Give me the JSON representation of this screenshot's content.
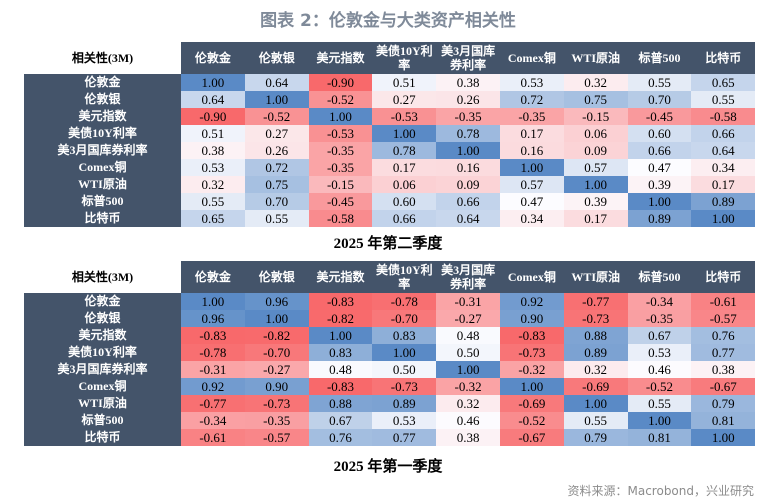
{
  "title": "图表 2：伦敦金与大类资产相关性",
  "source": "资料来源：Macrobond，兴业研究",
  "colors": {
    "header_bg": "#44546a",
    "positive": "#5a8ac6",
    "neutral": "#fcfcff",
    "negative": "#f8696b"
  },
  "chart_data": [
    {
      "type": "heatmap",
      "corner_label": "相关性(3M)",
      "title": "2025 年第二季度",
      "columns": [
        "伦敦金",
        "伦敦银",
        "美元指数",
        "美债10Y利率",
        "美3月国库券利率",
        "Comex铜",
        "WTI原油",
        "标普500",
        "比特币"
      ],
      "rows": [
        "伦敦金",
        "伦敦银",
        "美元指数",
        "美债10Y利率",
        "美3月国库券利率",
        "Comex铜",
        "WTI原油",
        "标普500",
        "比特币"
      ],
      "values": [
        [
          "1.00",
          "0.64",
          "-0.90",
          "0.51",
          "0.38",
          "0.53",
          "0.32",
          "0.55",
          "0.65"
        ],
        [
          "0.64",
          "1.00",
          "-0.52",
          "0.27",
          "0.26",
          "0.72",
          "0.75",
          "0.70",
          "0.55"
        ],
        [
          "-0.90",
          "-0.52",
          "1.00",
          "-0.53",
          "-0.35",
          "-0.35",
          "-0.15",
          "-0.45",
          "-0.58"
        ],
        [
          "0.51",
          "0.27",
          "-0.53",
          "1.00",
          "0.78",
          "0.17",
          "0.06",
          "0.60",
          "0.66"
        ],
        [
          "0.38",
          "0.26",
          "-0.35",
          "0.78",
          "1.00",
          "0.16",
          "0.09",
          "0.66",
          "0.64"
        ],
        [
          "0.53",
          "0.72",
          "-0.35",
          "0.17",
          "0.16",
          "1.00",
          "0.57",
          "0.47",
          "0.34"
        ],
        [
          "0.32",
          "0.75",
          "-0.15",
          "0.06",
          "0.09",
          "0.57",
          "1.00",
          "0.39",
          "0.17"
        ],
        [
          "0.55",
          "0.70",
          "-0.45",
          "0.60",
          "0.66",
          "0.47",
          "0.39",
          "1.00",
          "0.89"
        ],
        [
          "0.65",
          "0.55",
          "-0.58",
          "0.66",
          "0.64",
          "0.34",
          "0.17",
          "0.89",
          "1.00"
        ]
      ]
    },
    {
      "type": "heatmap",
      "corner_label": "相关性(3M)",
      "title": "2025 年第一季度",
      "columns": [
        "伦敦金",
        "伦敦银",
        "美元指数",
        "美债10Y利率",
        "美3月国库券利率",
        "Comex铜",
        "WTI原油",
        "标普500",
        "比特币"
      ],
      "rows": [
        "伦敦金",
        "伦敦银",
        "美元指数",
        "美债10Y利率",
        "美3月国库券利率",
        "Comex铜",
        "WTI原油",
        "标普500",
        "比特币"
      ],
      "values": [
        [
          "1.00",
          "0.96",
          "-0.83",
          "-0.78",
          "-0.31",
          "0.92",
          "-0.77",
          "-0.34",
          "-0.61"
        ],
        [
          "0.96",
          "1.00",
          "-0.82",
          "-0.70",
          "-0.27",
          "0.90",
          "-0.73",
          "-0.35",
          "-0.57"
        ],
        [
          "-0.83",
          "-0.82",
          "1.00",
          "0.83",
          "0.48",
          "-0.83",
          "0.88",
          "0.67",
          "0.76"
        ],
        [
          "-0.78",
          "-0.70",
          "0.83",
          "1.00",
          "0.50",
          "-0.73",
          "0.89",
          "0.53",
          "0.77"
        ],
        [
          "-0.31",
          "-0.27",
          "0.48",
          "0.50",
          "1.00",
          "-0.32",
          "0.32",
          "0.46",
          "0.38"
        ],
        [
          "0.92",
          "0.90",
          "-0.83",
          "-0.73",
          "-0.32",
          "1.00",
          "-0.69",
          "-0.52",
          "-0.67"
        ],
        [
          "-0.77",
          "-0.73",
          "0.88",
          "0.89",
          "0.32",
          "-0.69",
          "1.00",
          "0.55",
          "0.79"
        ],
        [
          "-0.34",
          "-0.35",
          "0.67",
          "0.53",
          "0.46",
          "-0.52",
          "0.55",
          "1.00",
          "0.81"
        ],
        [
          "-0.61",
          "-0.57",
          "0.76",
          "0.77",
          "0.38",
          "-0.67",
          "0.79",
          "0.81",
          "1.00"
        ]
      ]
    }
  ]
}
